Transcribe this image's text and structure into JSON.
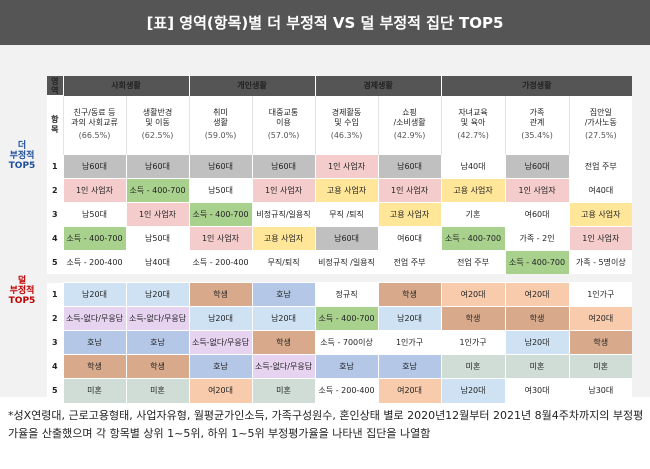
{
  "title": "[표] 영역(항목)별 더 부정적 VS 덜 부정적 집단 TOP5",
  "corner": {
    "top": "영역",
    "bottom": "항목"
  },
  "side_labels": {
    "more": "더\n부정적\nTOP5",
    "less": "덜\n부정적\nTOP5"
  },
  "groups": [
    {
      "name": "사회생활",
      "span": 2
    },
    {
      "name": "개인생활",
      "span": 2
    },
    {
      "name": "경제생활",
      "span": 2
    },
    {
      "name": "가정생활",
      "span": 3
    }
  ],
  "columns": [
    {
      "label": "친구/동료 등\n과의 사회교류",
      "pct": "(66.5%)"
    },
    {
      "label": "생활반경\n및 이동",
      "pct": "(62.5%)"
    },
    {
      "label": "취미\n생활",
      "pct": "(59.0%)"
    },
    {
      "label": "대중교통\n이용",
      "pct": "(57.0%)"
    },
    {
      "label": "경제활동\n및 수입",
      "pct": "(46.3%)"
    },
    {
      "label": "쇼핑\n/소비생활",
      "pct": "(42.9%)"
    },
    {
      "label": "자녀교육\n및 육아",
      "pct": "(42.7%)"
    },
    {
      "label": "가족\n관계",
      "pct": "(35.4%)"
    },
    {
      "label": "집안일\n/가사노동",
      "pct": "(27.5%)"
    }
  ],
  "more_negative": [
    {
      "rank": "1",
      "cells": [
        "남60대",
        "남60대",
        "남60대",
        "남60대",
        "1인 사업자",
        "남60대",
        "남40대",
        "남60대",
        "전업 주부"
      ]
    },
    {
      "rank": "2",
      "cells": [
        "1인 사업자",
        "소득 - 400-700",
        "남50대",
        "1인 사업자",
        "고용 사업자",
        "1인 사업자",
        "고용 사업자",
        "1인 사업자",
        "여40대"
      ]
    },
    {
      "rank": "3",
      "cells": [
        "남50대",
        "1인 사업자",
        "소득 - 400-700",
        "비정규직/일용직",
        "무직 /퇴직",
        "고용 사업자",
        "기혼",
        "여60대",
        "고용 사업자"
      ]
    },
    {
      "rank": "4",
      "cells": [
        "소득 - 400-700",
        "남50대",
        "1인 사업자",
        "고용 사업자",
        "남60대",
        "여60대",
        "소득 - 400-700",
        "가족 - 2인",
        "1인 사업자"
      ]
    },
    {
      "rank": "5",
      "cells": [
        "소득 - 200-400",
        "남40대",
        "소득 - 200-400",
        "무직/퇴직",
        "비정규직 /일용직",
        "전업 주부",
        "전업 주부",
        "소득 - 400-700",
        "가족 - 5명이상"
      ]
    }
  ],
  "less_negative": [
    {
      "rank": "1",
      "cells": [
        "남20대",
        "남20대",
        "학생",
        "호남",
        "정규직",
        "학생",
        "여20대",
        "여20대",
        "1인가구"
      ]
    },
    {
      "rank": "2",
      "cells": [
        "소득-없다/무응답",
        "소득-없다/무응답",
        "남20대",
        "남20대",
        "소득 - 400-700",
        "남20대",
        "학생",
        "학생",
        "여20대"
      ]
    },
    {
      "rank": "3",
      "cells": [
        "호남",
        "호남",
        "소득-없다/무응답",
        "학생",
        "소득 - 700이상",
        "1인가구",
        "1인가구",
        "남20대",
        "학생"
      ]
    },
    {
      "rank": "4",
      "cells": [
        "학생",
        "학생",
        "호남",
        "소득-없다/무응답",
        "호남",
        "호남",
        "미혼",
        "미혼",
        "미혼"
      ]
    },
    {
      "rank": "5",
      "cells": [
        "미혼",
        "미혼",
        "여20대",
        "미혼",
        "소득 - 200-400",
        "여20대",
        "남20대",
        "여30대",
        "남30대"
      ]
    }
  ],
  "colors": {
    "남60대": "#c0c0c0",
    "1인 사업자": "#f4cccc",
    "소득 - 400-700": "#a9d18e",
    "고용 사업자": "#ffe699",
    "남20대": "#cfe2f3",
    "학생": "#d8a98b",
    "호남": "#b4c7e7",
    "소득-없다/무응답": "#e6d3f0",
    "미혼": "#d0ddd6",
    "여20대": "#f8cbad",
    "default": "#ffffff"
  },
  "footnote": "*성X연령대, 근로고용형태, 사업자유형, 월평균가인소득, 가족구성원수, 혼인상태 별로 2020년12월부터 2021년 8월4주차까지의 부정평가율을 산출했으며 각 항목별 상위 1~5위, 하위 1~5위 부정평가율을 나타낸 집단을 나열함"
}
